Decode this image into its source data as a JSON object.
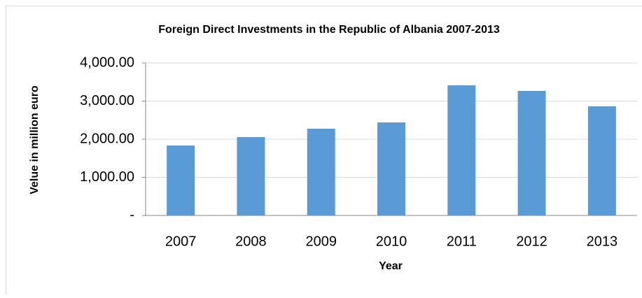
{
  "chart_data": {
    "type": "bar",
    "title": "Foreign Direct Investments in the Republic of Albania 2007-2013",
    "x_label": "Year",
    "y_label": "Velue in million euro",
    "categories": [
      "2007",
      "2008",
      "2009",
      "2010",
      "2011",
      "2012",
      "2013"
    ],
    "values": [
      1835,
      2055,
      2275,
      2440,
      3413,
      3266,
      2862
    ],
    "color": "#5b9bd5",
    "ylim": [
      0,
      4000
    ],
    "yticks": [
      {
        "value": 0,
        "label": "-"
      },
      {
        "value": 1000,
        "label": "1,000.00"
      },
      {
        "value": 2000,
        "label": "2,000.00"
      },
      {
        "value": 3000,
        "label": "3,000.00"
      },
      {
        "value": 4000,
        "label": "4,000.00"
      }
    ],
    "grid": true
  }
}
